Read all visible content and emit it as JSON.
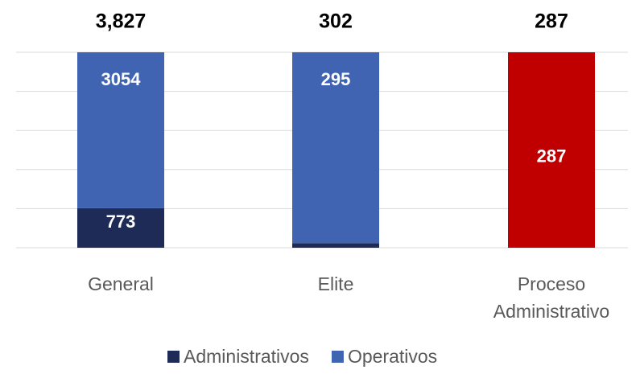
{
  "chart_data": {
    "type": "bar",
    "stacking": "percent",
    "categories": [
      "General",
      "Elite",
      "Proceso Administrativo"
    ],
    "series": [
      {
        "name": "Administrativos",
        "color": "#1f2b57",
        "values": [
          773,
          7,
          null
        ],
        "label_position": "inside_base"
      },
      {
        "name": "Operativos",
        "color": "#4064b2",
        "values": [
          3054,
          295,
          null
        ],
        "label_position": "inside_end"
      },
      {
        "color": "#c00000",
        "values": [
          null,
          null,
          287
        ],
        "label_position": "center"
      }
    ],
    "totals": {
      "values": [
        3827,
        302,
        287
      ],
      "value_labels": [
        "3,827",
        "302",
        "287"
      ]
    },
    "ylim": [
      0,
      100
    ],
    "yticks": [
      0,
      20,
      40,
      60,
      80,
      100
    ],
    "grid": true,
    "legend": "bottom"
  }
}
